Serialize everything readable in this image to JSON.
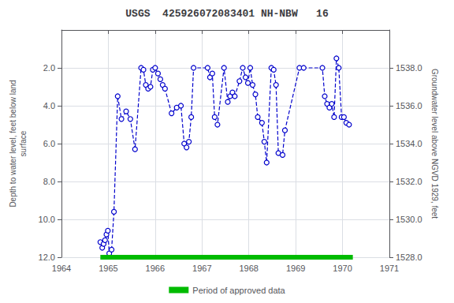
{
  "chart_data": {
    "type": "line",
    "title": "USGS  425926072083401 NH-NBW   16",
    "ylabel": "Depth to water level, feet below land\nsurface",
    "y2label": "Groundwater level above NGVD 1929, feet",
    "xlim": [
      1964,
      1971
    ],
    "xticks": [
      1964,
      1965,
      1966,
      1967,
      1968,
      1969,
      1970,
      1971
    ],
    "ylim": [
      12.0,
      0.0
    ],
    "yticks": [
      {
        "value": 2.0,
        "label": "2.0"
      },
      {
        "value": 4.0,
        "label": "4.0"
      },
      {
        "value": 6.0,
        "label": "6.0"
      },
      {
        "value": 8.0,
        "label": "8.0"
      },
      {
        "value": 10.0,
        "label": "10.0"
      },
      {
        "value": 12.0,
        "label": "12.0"
      }
    ],
    "y2lim": [
      1528.0,
      1540.0
    ],
    "y2ticks": [
      {
        "value": 1528.0,
        "label": "1528.0"
      },
      {
        "value": 1530.0,
        "label": "1530.0"
      },
      {
        "value": 1532.0,
        "label": "1532.0"
      },
      {
        "value": 1534.0,
        "label": "1534.0"
      },
      {
        "value": 1536.0,
        "label": "1536.0"
      },
      {
        "value": 1538.0,
        "label": "1538.0"
      }
    ],
    "grid": true,
    "legend": "bottom",
    "series": [
      {
        "color": "#0000cc",
        "line_style": "dashed",
        "marker": "circle",
        "x": [
          1964.83,
          1964.87,
          1964.9,
          1964.93,
          1964.96,
          1964.99,
          1965.02,
          1965.07,
          1965.12,
          1965.2,
          1965.28,
          1965.38,
          1965.47,
          1965.57,
          1965.7,
          1965.75,
          1965.8,
          1965.85,
          1965.9,
          1965.95,
          1966.0,
          1966.06,
          1966.11,
          1966.16,
          1966.21,
          1966.35,
          1966.46,
          1966.55,
          1966.62,
          1966.67,
          1966.72,
          1966.77,
          1966.82,
          1967.12,
          1967.17,
          1967.22,
          1967.27,
          1967.33,
          1967.47,
          1967.55,
          1967.6,
          1967.65,
          1967.7,
          1967.8,
          1967.87,
          1967.93,
          1967.98,
          1968.03,
          1968.08,
          1968.14,
          1968.19,
          1968.28,
          1968.33,
          1968.38,
          1968.48,
          1968.53,
          1968.58,
          1968.63,
          1968.72,
          1968.77,
          1969.08,
          1969.17,
          1969.57,
          1969.62,
          1969.67,
          1969.72,
          1969.77,
          1969.82,
          1969.87,
          1969.92,
          1969.98,
          1970.03,
          1970.08,
          1970.14
        ],
        "values": [
          11.2,
          11.5,
          11.3,
          11.1,
          10.8,
          10.6,
          11.8,
          11.6,
          9.6,
          3.5,
          4.7,
          4.3,
          4.7,
          6.3,
          2.0,
          2.1,
          2.9,
          3.1,
          3.0,
          2.1,
          2.0,
          2.3,
          2.6,
          2.9,
          3.1,
          4.4,
          4.1,
          4.0,
          6.0,
          6.2,
          5.9,
          4.6,
          2.0,
          2.0,
          2.5,
          2.3,
          4.6,
          5.0,
          2.0,
          3.8,
          3.5,
          3.3,
          3.5,
          2.7,
          2.0,
          2.5,
          2.8,
          2.0,
          2.9,
          3.4,
          4.6,
          4.9,
          5.9,
          7.0,
          2.0,
          2.1,
          2.9,
          6.5,
          6.6,
          5.3,
          2.0,
          2.0,
          2.0,
          3.5,
          3.9,
          4.1,
          3.9,
          4.6,
          1.5,
          2.0,
          4.6,
          4.6,
          4.9,
          5.0
        ]
      },
      {
        "name": "Period of approved data",
        "color": "#00bb00",
        "line_style": "solid",
        "x": [
          1964.83,
          1970.22
        ],
        "values": [
          12.0,
          12.0
        ]
      }
    ]
  }
}
